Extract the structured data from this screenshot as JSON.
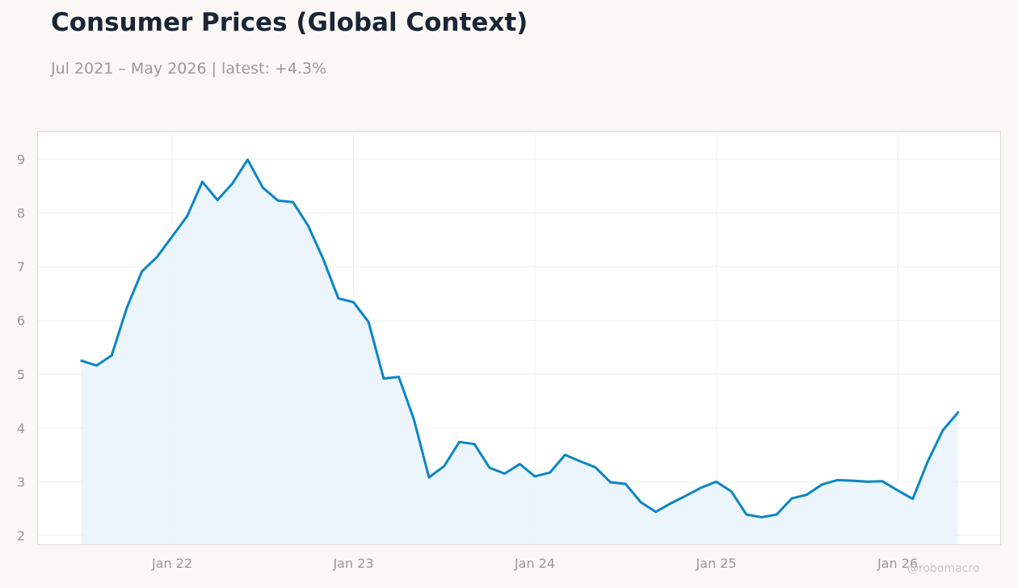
{
  "header": {
    "title": "Consumer Prices (Global Context)",
    "subtitle": "Jul 2021 – May 2026 | latest: +4.3%"
  },
  "watermark": "@robomacro",
  "colors": {
    "line": "#0a85c7",
    "fill": "#e9f4fb",
    "background": "#f9f8f5",
    "plot_background": "#ffffff"
  },
  "chart_data": {
    "type": "area",
    "title": "Consumer Prices (Global Context)",
    "subtitle": "Jul 2021 – May 2026 | latest: +4.3%",
    "xlabel": "",
    "ylabel": "",
    "x_ticks": [
      "Jan 22",
      "Jan 23",
      "Jan 24",
      "Jan 25",
      "Jan 26"
    ],
    "y_ticks": [
      2,
      3,
      4,
      5,
      6,
      7,
      8,
      9
    ],
    "ylim": [
      1.8,
      9.5
    ],
    "xlim": [
      "2021-05",
      "2026-09"
    ],
    "grid": true,
    "legend": "none",
    "series": [
      {
        "x": [
          "2021-07",
          "2021-08",
          "2021-09",
          "2021-10",
          "2021-11",
          "2021-12",
          "2022-01",
          "2022-02",
          "2022-03",
          "2022-04",
          "2022-05",
          "2022-06",
          "2022-07",
          "2022-08",
          "2022-09",
          "2022-10",
          "2022-11",
          "2022-12",
          "2023-01",
          "2023-02",
          "2023-03",
          "2023-04",
          "2023-05",
          "2023-06",
          "2023-07",
          "2023-08",
          "2023-09",
          "2023-10",
          "2023-11",
          "2023-12",
          "2024-01",
          "2024-02",
          "2024-03",
          "2024-04",
          "2024-05",
          "2024-06",
          "2024-07",
          "2024-08",
          "2024-09",
          "2024-10",
          "2024-11",
          "2024-12",
          "2025-01",
          "2025-02",
          "2025-03",
          "2025-04",
          "2025-05",
          "2025-06",
          "2025-07",
          "2025-08",
          "2025-09",
          "2025-10",
          "2025-11",
          "2025-12",
          "2026-01",
          "2026-02",
          "2026-03",
          "2026-04",
          "2026-05"
        ],
        "values": [
          5.25,
          5.16,
          5.35,
          6.23,
          6.91,
          7.18,
          7.56,
          7.94,
          8.58,
          8.24,
          8.55,
          8.99,
          8.47,
          8.23,
          8.2,
          7.76,
          7.14,
          6.41,
          6.34,
          5.97,
          4.92,
          4.95,
          4.16,
          3.08,
          3.29,
          3.74,
          3.7,
          3.26,
          3.15,
          3.33,
          3.1,
          3.17,
          3.5,
          3.38,
          3.27,
          2.99,
          2.96,
          2.62,
          2.44,
          2.6,
          2.74,
          2.89,
          3.0,
          2.82,
          2.39,
          2.34,
          2.39,
          2.69,
          2.76,
          2.95,
          3.03,
          3.02,
          3.0,
          3.01,
          2.84,
          2.68,
          3.38,
          3.96,
          4.29
        ]
      }
    ]
  }
}
